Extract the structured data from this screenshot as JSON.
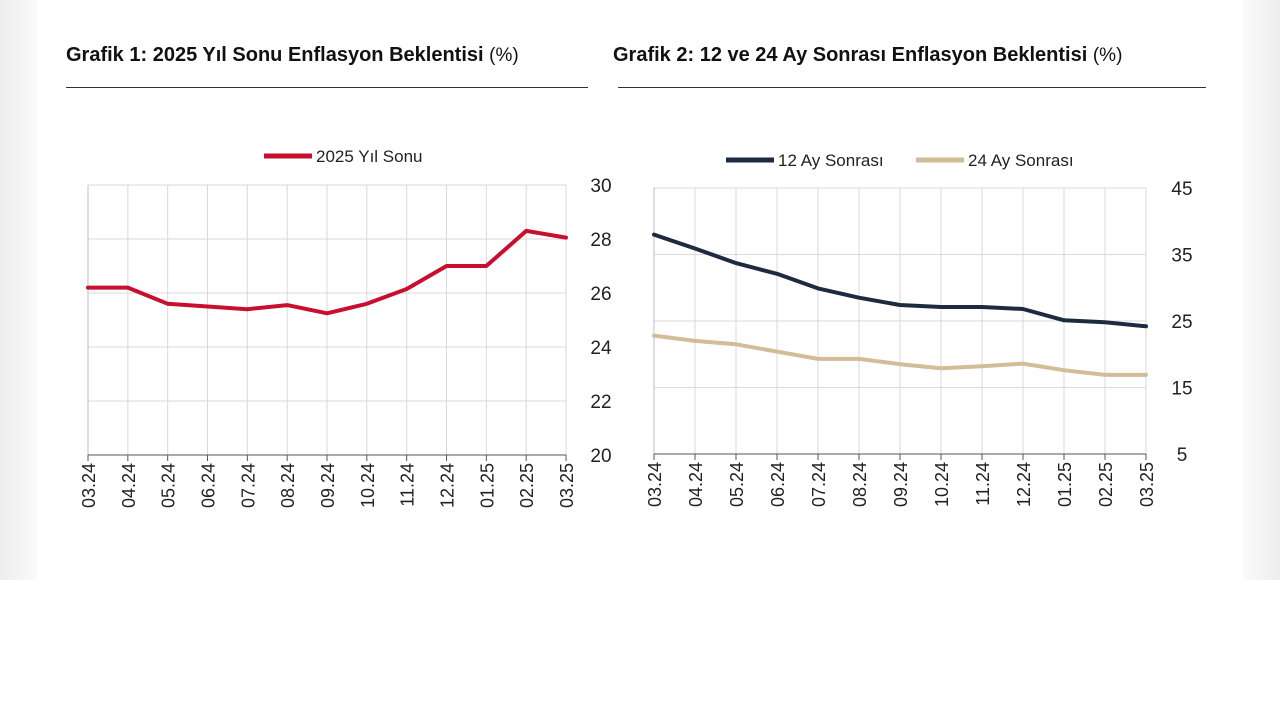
{
  "chart_data": [
    {
      "type": "line",
      "title": "Grafik 1: 2025 Yıl Sonu Enflasyon Beklentisi",
      "title_unit": "(%)",
      "categories": [
        "03.24",
        "04.24",
        "05.24",
        "06.24",
        "07.24",
        "08.24",
        "09.24",
        "10.24",
        "11.24",
        "12.24",
        "01.25",
        "02.25",
        "03.25"
      ],
      "series": [
        {
          "name": "2025 Yıl Sonu",
          "color": "#c8102e",
          "values": [
            26.2,
            26.2,
            25.6,
            25.5,
            25.4,
            25.55,
            25.25,
            25.6,
            26.15,
            27.0,
            27.0,
            28.3,
            28.05
          ]
        }
      ],
      "y_ticks": [
        "30",
        "28",
        "26",
        "24",
        "22",
        "20"
      ],
      "ylim": [
        20,
        30
      ],
      "y_axis_side": "right",
      "grid": true,
      "legend": "top-center"
    },
    {
      "type": "line",
      "title": "Grafik 2: 12 ve 24 Ay Sonrası Enflasyon Beklentisi",
      "title_unit": "(%)",
      "categories": [
        "03.24",
        "04.24",
        "05.24",
        "06.24",
        "07.24",
        "08.24",
        "09.24",
        "10.24",
        "11.24",
        "12.24",
        "01.25",
        "02.25",
        "03.25"
      ],
      "series": [
        {
          "name": "12 Ay Sonrası",
          "color": "#1c2b40",
          "values": [
            38.0,
            35.9,
            33.7,
            32.1,
            29.9,
            28.5,
            27.4,
            27.1,
            27.1,
            26.8,
            25.1,
            24.8,
            24.2
          ]
        },
        {
          "name": "24 Ay Sonrası",
          "color": "#d3bc97",
          "values": [
            22.8,
            22.0,
            21.5,
            20.4,
            19.3,
            19.3,
            18.5,
            17.9,
            18.2,
            18.6,
            17.6,
            16.9,
            16.9
          ]
        }
      ],
      "y_ticks": [
        "45",
        "35",
        "25",
        "15",
        "5"
      ],
      "ylim": [
        5,
        45
      ],
      "y_axis_side": "right",
      "grid": true,
      "legend": "top-center"
    }
  ]
}
